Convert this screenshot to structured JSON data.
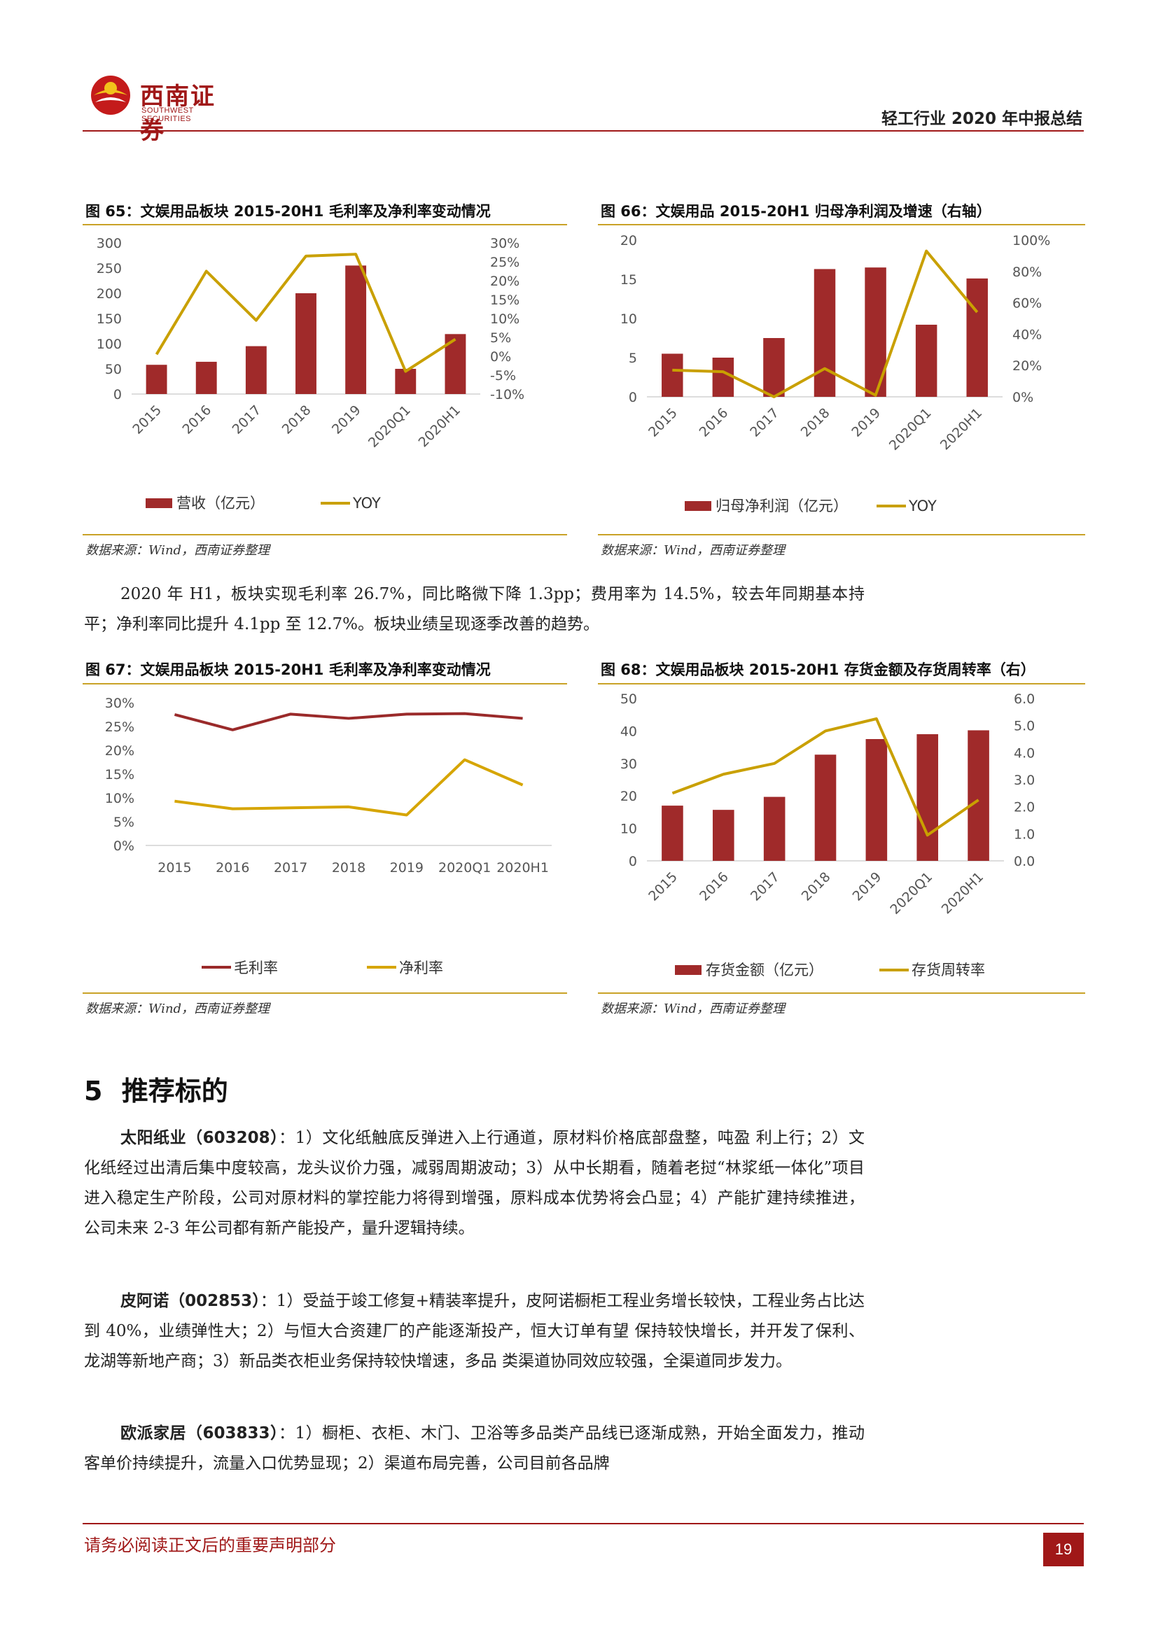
{
  "header": {
    "brand_cn": "西南证券",
    "brand_en": "SOUTHWEST SECURITIES",
    "report_title": "轻工行业 2020 年中报总结"
  },
  "fig65": {
    "title": "图 65：文娱用品板块 2015-20H1 毛利率及净利率变动情况",
    "source": "数据来源：Wind，西南证券整理",
    "chart_data": {
      "type": "bar",
      "categories": [
        "2015",
        "2016",
        "2017",
        "2018",
        "2019",
        "2020Q1",
        "2020H1"
      ],
      "series": [
        {
          "name": "营收（亿元）",
          "type": "bar",
          "axis": "left",
          "values": [
            58,
            64,
            95,
            200,
            255,
            50,
            119
          ]
        },
        {
          "name": "YOY",
          "type": "line",
          "axis": "right",
          "values": [
            0.5,
            22.5,
            9.5,
            26.5,
            27,
            -4,
            4.5
          ]
        }
      ],
      "y_left": {
        "min": 0,
        "max": 300,
        "ticks": [
          "0",
          "50",
          "100",
          "150",
          "200",
          "250",
          "300"
        ]
      },
      "y_right": {
        "min": -10,
        "max": 30,
        "ticks": [
          "-10%",
          "-5%",
          "0%",
          "5%",
          "10%",
          "15%",
          "20%",
          "25%",
          "30%"
        ]
      },
      "legend": "bottom",
      "colors": {
        "bar": "#a02a2a",
        "line": "#c9a000"
      }
    }
  },
  "fig66": {
    "title": "图 66：文娱用品 2015-20H1 归母净利润及增速（右轴）",
    "source": "数据来源：Wind，西南证券整理",
    "chart_data": {
      "type": "bar",
      "categories": [
        "2015",
        "2016",
        "2017",
        "2018",
        "2019",
        "2020Q1",
        "2020H1"
      ],
      "series": [
        {
          "name": "归母净利润（亿元）",
          "type": "bar",
          "axis": "left",
          "values": [
            5.5,
            5,
            7.5,
            16.3,
            16.5,
            9.2,
            15.1
          ]
        },
        {
          "name": "YOY",
          "type": "line",
          "axis": "right",
          "values": [
            17,
            16,
            0,
            18,
            1,
            93,
            54
          ]
        }
      ],
      "y_left": {
        "min": 0,
        "max": 20,
        "ticks": [
          "0",
          "5",
          "10",
          "15",
          "20"
        ]
      },
      "y_right": {
        "min": 0,
        "max": 100,
        "ticks": [
          "0%",
          "20%",
          "40%",
          "60%",
          "80%",
          "100%"
        ]
      },
      "legend": "bottom",
      "colors": {
        "bar": "#a02a2a",
        "line": "#c9a000"
      }
    }
  },
  "para1": "2020 年 H1，板块实现毛利率 26.7%，同比略微下降 1.3pp；费用率为 14.5%，较去年同期基本持平；净利率同比提升 4.1pp 至 12.7%。板块业绩呈现逐季改善的趋势。",
  "fig67": {
    "title": "图 67：文娱用品板块 2015-20H1 毛利率及净利率变动情况",
    "source": "数据来源：Wind，西南证券整理",
    "chart_data": {
      "type": "line",
      "categories": [
        "2015",
        "2016",
        "2017",
        "2018",
        "2019",
        "2020Q1",
        "2020H1"
      ],
      "series": [
        {
          "name": "毛利率",
          "values": [
            27.5,
            24.3,
            27.6,
            26.7,
            27.6,
            27.7,
            26.7
          ]
        },
        {
          "name": "净利率",
          "values": [
            9.3,
            7.7,
            7.9,
            8.1,
            6.4,
            18.0,
            12.7
          ]
        }
      ],
      "y": {
        "min": 0,
        "max": 30,
        "ticks": [
          "0%",
          "5%",
          "10%",
          "15%",
          "20%",
          "25%",
          "30%"
        ]
      },
      "legend": "bottom",
      "colors": {
        "gross": "#9a2a2a",
        "net": "#d6a500"
      }
    }
  },
  "fig68": {
    "title": "图 68：文娱用品板块 2015-20H1 存货金额及存货周转率（右）",
    "source": "数据来源：Wind，西南证券整理",
    "chart_data": {
      "type": "bar",
      "categories": [
        "2015",
        "2016",
        "2017",
        "2018",
        "2019",
        "2020Q1",
        "2020H1"
      ],
      "series": [
        {
          "name": "存货金额（亿元）",
          "type": "bar",
          "axis": "left",
          "values": [
            17,
            15.7,
            19.7,
            32.7,
            37.5,
            39,
            40.2
          ]
        },
        {
          "name": "存货周转率",
          "type": "line",
          "axis": "right",
          "values": [
            2.5,
            3.2,
            3.6,
            4.8,
            5.25,
            0.95,
            2.25
          ]
        }
      ],
      "y_left": {
        "min": 0,
        "max": 50,
        "ticks": [
          "0",
          "10",
          "20",
          "30",
          "40",
          "50"
        ]
      },
      "y_right": {
        "min": 0,
        "max": 6,
        "ticks": [
          "0.0",
          "1.0",
          "2.0",
          "3.0",
          "4.0",
          "5.0",
          "6.0"
        ]
      },
      "legend": "bottom",
      "colors": {
        "bar": "#a02a2a",
        "line": "#c9a000"
      }
    }
  },
  "section": {
    "number": "5",
    "title": "推荐标的"
  },
  "companies": [
    {
      "name": "太阳纸业（603208）",
      "text": "：1）文化纸触底反弹进入上行通道，原材料价格底部盘整，吨盈 利上行；2）文化纸经过出清后集中度较高，龙头议价力强，减弱周期波动；3）从中长期看，随着老挝“林浆纸一体化”项目进入稳定生产阶段，公司对原材料的掌控能力将得到增强，原料成本优势将会凸显；4）产能扩建持续推进，公司未来 2-3 年公司都有新产能投产，量升逻辑持续。"
    },
    {
      "name": "皮阿诺（002853）",
      "text": "：1）受益于竣工修复+精装率提升，皮阿诺橱柜工程业务增长较快，工程业务占比达到 40%，业绩弹性大；2）与恒大合资建厂的产能逐渐投产，恒大订单有望 保持较快增长，并开发了保利、龙湖等新地产商；3）新品类衣柜业务保持较快增速，多品 类渠道协同效应较强，全渠道同步发力。"
    },
    {
      "name": "欧派家居（603833）",
      "text": "：1）橱柜、衣柜、木门、卫浴等多品类产品线已逐渐成熟，开始全面发力，推动客单价持续提升，流量入口优势显现；2）渠道布局完善，公司目前各品牌"
    }
  ],
  "footer": {
    "note": "请务必阅读正文后的重要声明部分",
    "page": "19"
  }
}
